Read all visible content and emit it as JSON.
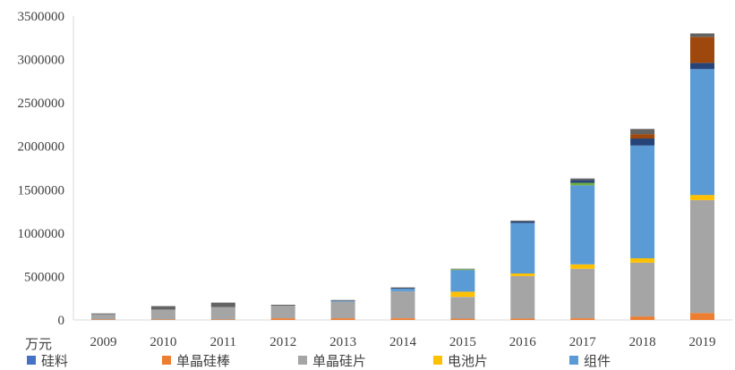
{
  "chart_data": {
    "type": "bar",
    "stacked": true,
    "ylabel": "万元",
    "ylim": [
      0,
      3500000
    ],
    "ytick_step": 500000,
    "yticks": [
      "0",
      "500000",
      "1000000",
      "1500000",
      "2000000",
      "2500000",
      "3000000",
      "3500000"
    ],
    "categories": [
      "2009",
      "2010",
      "2011",
      "2012",
      "2013",
      "2014",
      "2015",
      "2016",
      "2017",
      "2018",
      "2019"
    ],
    "grid": false,
    "legend_position": "bottom",
    "series": [
      {
        "name": "单晶硅棒",
        "color": "#ED7D31",
        "values": [
          5000,
          5000,
          5000,
          20000,
          20000,
          20000,
          15000,
          15000,
          20000,
          40000,
          80000
        ]
      },
      {
        "name": "单晶硅片",
        "color": "#A5A5A5",
        "values": [
          60000,
          115000,
          145000,
          145000,
          190000,
          310000,
          250000,
          490000,
          570000,
          620000,
          1300000
        ]
      },
      {
        "name": "电池片",
        "color": "#FFC000",
        "values": [
          0,
          0,
          0,
          0,
          0,
          0,
          60000,
          30000,
          50000,
          50000,
          60000
        ]
      },
      {
        "name": "组件",
        "color": "#5B9BD5",
        "values": [
          0,
          0,
          0,
          0,
          10000,
          30000,
          250000,
          580000,
          910000,
          1300000,
          1450000
        ]
      },
      {
        "name": "",
        "color": "#70AD47",
        "values": [
          0,
          0,
          0,
          0,
          0,
          0,
          10000,
          0,
          30000,
          0,
          0
        ]
      },
      {
        "name": "",
        "color": "#264478",
        "values": [
          0,
          0,
          0,
          0,
          0,
          5000,
          0,
          20000,
          30000,
          80000,
          70000
        ]
      },
      {
        "name": "",
        "color": "#9E480E",
        "values": [
          0,
          0,
          0,
          0,
          0,
          0,
          0,
          0,
          0,
          50000,
          300000
        ]
      },
      {
        "name": "",
        "color": "#636363",
        "values": [
          10000,
          40000,
          50000,
          10000,
          10000,
          10000,
          5000,
          10000,
          20000,
          60000,
          40000
        ]
      }
    ]
  },
  "legend": [
    {
      "name": "硅料",
      "color": "#4472C4"
    },
    {
      "name": "单晶硅棒",
      "color": "#ED7D31"
    },
    {
      "name": "单晶硅片",
      "color": "#A5A5A5"
    },
    {
      "name": "电池片",
      "color": "#FFC000"
    },
    {
      "name": "组件",
      "color": "#5B9BD5"
    }
  ]
}
